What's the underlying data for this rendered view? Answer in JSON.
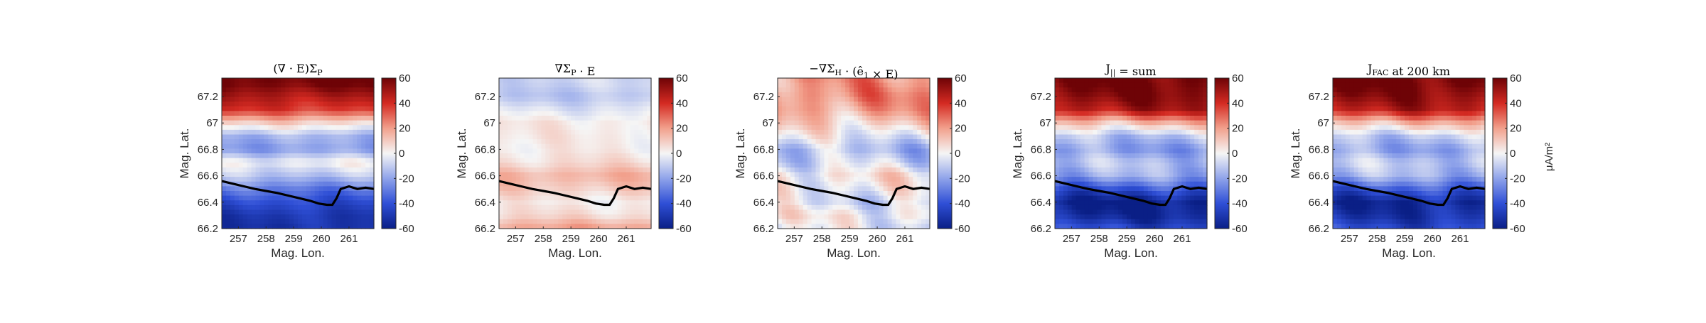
{
  "colormap": {
    "name": "blue-white-red diverging",
    "stops": [
      "#0a1f86",
      "#2f4fd6",
      "#8fa3ea",
      "#f5f5f5",
      "#f2a08c",
      "#d42a22",
      "#6e0306"
    ],
    "clim": [
      -60,
      60
    ]
  },
  "trace_color": "#000000",
  "colorbar_unit": "μA/m²",
  "chart_data": [
    {
      "type": "heatmap",
      "title": "(∇ · E)Σ_P",
      "xlabel": "Mag. Lon.",
      "ylabel": "Mag. Lat.",
      "xlim": [
        256.4,
        261.9
      ],
      "ylim": [
        66.2,
        67.34
      ],
      "xticks": [
        "257",
        "258",
        "259",
        "260",
        "261"
      ],
      "yticks": [
        "66.2",
        "66.4",
        "66.6",
        "66.8",
        "67",
        "67.2"
      ],
      "colorbar_ticks": [
        "-60",
        "-40",
        "-20",
        "0",
        "20",
        "40",
        "60"
      ],
      "field": {
        "lat": [
          66.2,
          66.3,
          66.4,
          66.5,
          66.6,
          66.7,
          66.8,
          66.9,
          67.0,
          67.1,
          67.2,
          67.3
        ],
        "profile": [
          -52,
          -50,
          -42,
          -30,
          -12,
          0,
          -22,
          -16,
          8,
          38,
          48,
          60
        ],
        "wave_amp": 6
      }
    },
    {
      "type": "heatmap",
      "title": "∇Σ_P · E",
      "xlabel": "Mag. Lon.",
      "ylabel": "Mag. Lat.",
      "xlim": [
        256.4,
        261.9
      ],
      "ylim": [
        66.2,
        67.34
      ],
      "xticks": [
        "257",
        "258",
        "259",
        "260",
        "261"
      ],
      "yticks": [
        "66.2",
        "66.4",
        "66.6",
        "66.8",
        "67",
        "67.2"
      ],
      "colorbar_ticks": [
        "-60",
        "-40",
        "-20",
        "0",
        "20",
        "40",
        "60"
      ],
      "field": {
        "lat": [
          66.2,
          66.3,
          66.4,
          66.5,
          66.6,
          66.7,
          66.8,
          66.9,
          67.0,
          67.1,
          67.2,
          67.3
        ],
        "profile": [
          20,
          6,
          2,
          10,
          16,
          6,
          2,
          3,
          3,
          -4,
          -12,
          -8
        ],
        "wave_amp": 5
      }
    },
    {
      "type": "heatmap",
      "title": "−∇Σ_H · (ê_1 × E)",
      "xlabel": "Mag. Lon.",
      "ylabel": "Mag. Lat.",
      "xlim": [
        256.4,
        261.9
      ],
      "ylim": [
        66.2,
        67.34
      ],
      "xticks": [
        "257",
        "258",
        "259",
        "260",
        "261"
      ],
      "yticks": [
        "66.2",
        "66.4",
        "66.6",
        "66.8",
        "67",
        "67.2"
      ],
      "colorbar_ticks": [
        "-60",
        "-40",
        "-20",
        "0",
        "20",
        "40",
        "60"
      ],
      "field": {
        "lat": [
          66.2,
          66.3,
          66.4,
          66.5,
          66.6,
          66.7,
          66.8,
          66.9,
          67.0,
          67.1,
          67.2,
          67.3
        ],
        "profile": [
          -4,
          2,
          -6,
          0,
          4,
          -8,
          -14,
          -2,
          10,
          20,
          24,
          22
        ],
        "wave_amp": 14
      }
    },
    {
      "type": "heatmap",
      "title": "J_|| = sum",
      "xlabel": "Mag. Lon.",
      "ylabel": "Mag. Lat.",
      "xlim": [
        256.4,
        261.9
      ],
      "ylim": [
        66.2,
        67.34
      ],
      "xticks": [
        "257",
        "258",
        "259",
        "260",
        "261"
      ],
      "yticks": [
        "66.2",
        "66.4",
        "66.6",
        "66.8",
        "67",
        "67.2"
      ],
      "colorbar_ticks": [
        "-60",
        "-40",
        "-20",
        "0",
        "20",
        "40",
        "60"
      ],
      "field": {
        "lat": [
          66.2,
          66.3,
          66.4,
          66.5,
          66.6,
          66.7,
          66.8,
          66.9,
          67.0,
          67.1,
          67.2,
          67.3
        ],
        "profile": [
          -42,
          -56,
          -60,
          -40,
          -18,
          -12,
          -22,
          -12,
          14,
          48,
          56,
          60
        ],
        "wave_amp": 10
      }
    },
    {
      "type": "heatmap",
      "title": "J_FAC at 200 km",
      "xlabel": "Mag. Lon.",
      "ylabel": "Mag. Lat.",
      "xlim": [
        256.4,
        261.9
      ],
      "ylim": [
        66.2,
        67.34
      ],
      "xticks": [
        "257",
        "258",
        "259",
        "260",
        "261"
      ],
      "yticks": [
        "66.2",
        "66.4",
        "66.6",
        "66.8",
        "67",
        "67.2"
      ],
      "colorbar_ticks": [
        "-60",
        "-40",
        "-20",
        "0",
        "20",
        "40",
        "60"
      ],
      "colorbar_label": "μA/m²",
      "field": {
        "lat": [
          66.2,
          66.3,
          66.4,
          66.5,
          66.6,
          66.7,
          66.8,
          66.9,
          67.0,
          67.1,
          67.2,
          67.3
        ],
        "profile": [
          -42,
          -52,
          -56,
          -38,
          -16,
          -10,
          -20,
          -10,
          14,
          46,
          54,
          60
        ],
        "wave_amp": 10
      }
    }
  ],
  "trace": {
    "lon": [
      256.4,
      256.8,
      257.2,
      257.6,
      258.0,
      258.4,
      258.8,
      259.2,
      259.6,
      259.9,
      260.2,
      260.4,
      260.55,
      260.7,
      261.0,
      261.3,
      261.6,
      261.9
    ],
    "lat": [
      66.56,
      66.54,
      66.52,
      66.5,
      66.485,
      66.47,
      66.45,
      66.43,
      66.41,
      66.39,
      66.38,
      66.38,
      66.43,
      66.5,
      66.52,
      66.5,
      66.51,
      66.5
    ]
  }
}
